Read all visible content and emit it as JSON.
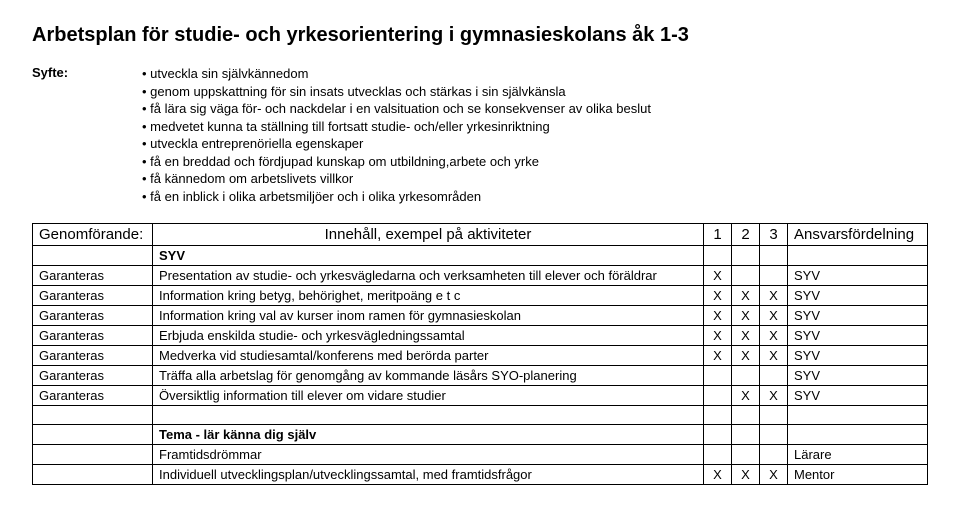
{
  "title": "Arbetsplan för studie- och yrkesorientering i gymnasieskolans åk 1-3",
  "syfte": {
    "label": "Syfte:",
    "items": [
      "utveckla sin självkännedom",
      "genom uppskattning för sin insats utvecklas och stärkas i sin självkänsla",
      "få lära sig väga för- och nackdelar i en valsituation och se konsekvenser av olika beslut",
      "medvetet kunna ta ställning till fortsatt studie- och/eller yrkesinriktning",
      "utveckla entreprenöriella egenskaper",
      "få en breddad och fördjupad kunskap om utbildning,arbete och yrke",
      "få kännedom om arbetslivets villkor",
      "få en inblick i olika arbetsmiljöer och i olika yrkesområden"
    ]
  },
  "table": {
    "header": {
      "c1": "Genomförande:",
      "c2": "Innehåll, exempel på aktiviteter",
      "c3": "1",
      "c4": "2",
      "c5": "3",
      "c6": "Ansvarsfördelning"
    },
    "rows": [
      {
        "c1": "",
        "c2": "SYV",
        "c2bold": true,
        "c3": "",
        "c4": "",
        "c5": "",
        "c6": ""
      },
      {
        "c1": "Garanteras",
        "c2": "Presentation av studie- och yrkesvägledarna och verksamheten till elever och föräldrar",
        "c3": "X",
        "c4": "",
        "c5": "",
        "c6": "SYV"
      },
      {
        "c1": "Garanteras",
        "c2": "Information kring betyg, behörighet, meritpoäng e t c",
        "c3": "X",
        "c4": "X",
        "c5": "X",
        "c6": "SYV"
      },
      {
        "c1": "Garanteras",
        "c2": "Information kring val av kurser inom ramen för gymnasieskolan",
        "c3": "X",
        "c4": "X",
        "c5": "X",
        "c6": "SYV"
      },
      {
        "c1": "Garanteras",
        "c2": "Erbjuda enskilda studie- och yrkesvägledningssamtal",
        "c3": "X",
        "c4": "X",
        "c5": "X",
        "c6": "SYV"
      },
      {
        "c1": "Garanteras",
        "c2": "Medverka vid studiesamtal/konferens med berörda parter",
        "c3": "X",
        "c4": "X",
        "c5": "X",
        "c6": "SYV"
      },
      {
        "c1": "Garanteras",
        "c2": "Träffa alla arbetslag för genomgång av kommande läsårs SYO-planering",
        "c3": "",
        "c4": "",
        "c5": "",
        "c6": "SYV"
      },
      {
        "c1": "Garanteras",
        "c2": "Översiktlig information till elever om vidare studier",
        "c3": "",
        "c4": "X",
        "c5": "X",
        "c6": "SYV"
      },
      {
        "c1": "",
        "c2": "",
        "c3": "",
        "c4": "",
        "c5": "",
        "c6": ""
      },
      {
        "c1": "",
        "c2": "Tema - lär känna dig själv",
        "c2bold": true,
        "c3": "",
        "c4": "",
        "c5": "",
        "c6": ""
      },
      {
        "c1": "",
        "c2": "Framtidsdrömmar",
        "c3": "",
        "c4": "",
        "c5": "",
        "c6": "Lärare"
      },
      {
        "c1": "",
        "c2": "Individuell utvecklingsplan/utvecklingssamtal, med framtidsfrågor",
        "c3": "X",
        "c4": "X",
        "c5": "X",
        "c6": "Mentor"
      }
    ]
  }
}
